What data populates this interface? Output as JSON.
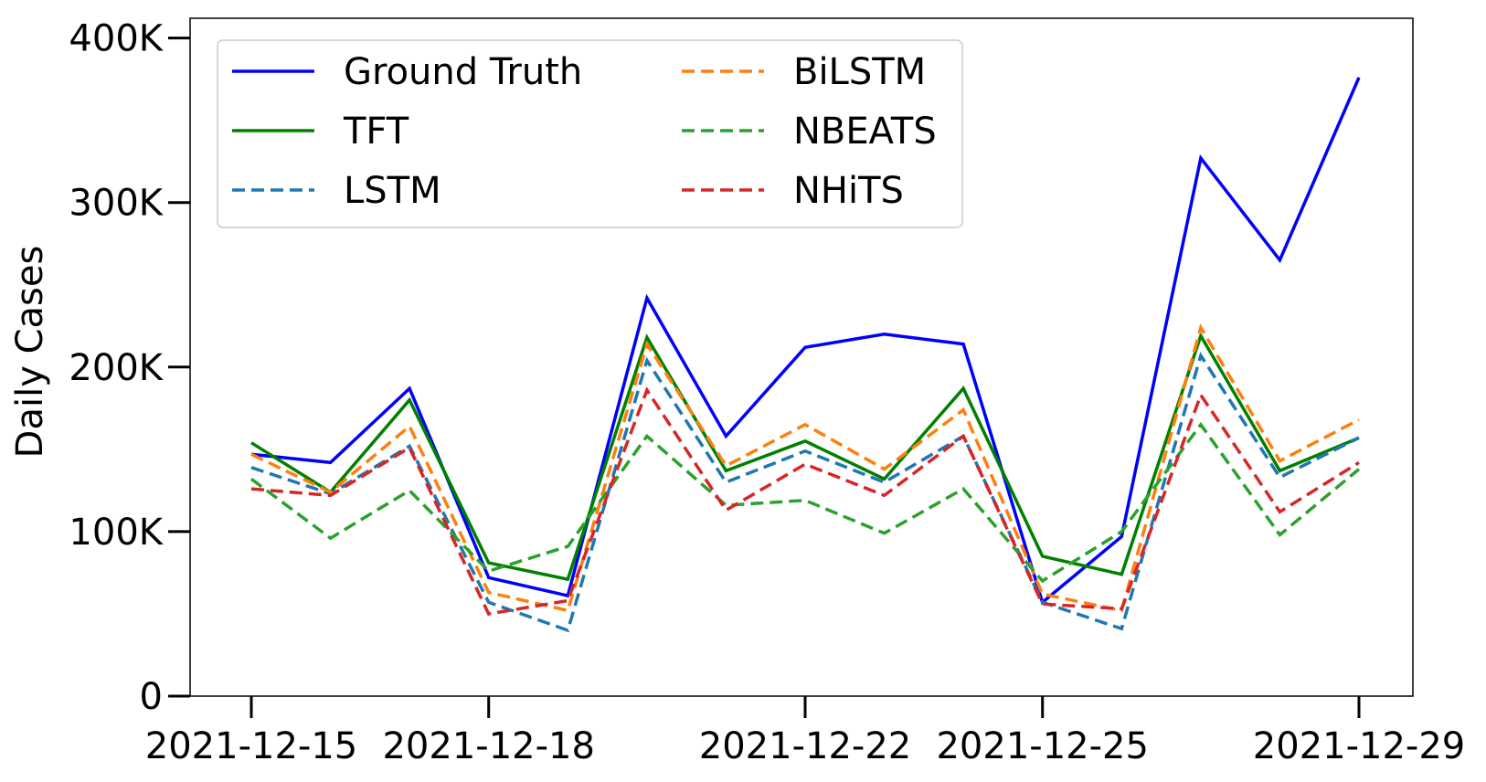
{
  "chart_data": {
    "type": "line",
    "title": "",
    "xlabel": "",
    "ylabel": "Daily Cases",
    "x": [
      "2021-12-15",
      "2021-12-16",
      "2021-12-17",
      "2021-12-18",
      "2021-12-19",
      "2021-12-20",
      "2021-12-21",
      "2021-12-22",
      "2021-12-23",
      "2021-12-24",
      "2021-12-25",
      "2021-12-26",
      "2021-12-27",
      "2021-12-28",
      "2021-12-29"
    ],
    "x_ticks": [
      "2021-12-15",
      "2021-12-18",
      "2021-12-22",
      "2021-12-25",
      "2021-12-29"
    ],
    "y_ticks": [
      0,
      100000,
      200000,
      300000,
      400000
    ],
    "y_tick_labels": [
      "0",
      "100K",
      "200K",
      "300K",
      "400K"
    ],
    "ylim": [
      0,
      412000
    ],
    "grid": false,
    "legend_position": "top-left",
    "legend_columns": 2,
    "series": [
      {
        "name": "Ground Truth",
        "color": "#0000ff",
        "style": "solid",
        "values": [
          147000,
          142000,
          187000,
          72000,
          61000,
          242000,
          158000,
          212000,
          220000,
          214000,
          57000,
          97000,
          327000,
          265000,
          376000
        ]
      },
      {
        "name": "TFT",
        "color": "#008000",
        "style": "solid",
        "values": [
          154000,
          124000,
          180000,
          81000,
          71000,
          218000,
          137000,
          155000,
          132000,
          187000,
          85000,
          74000,
          219000,
          137000,
          157000
        ]
      },
      {
        "name": "LSTM",
        "color": "#1f77b4",
        "style": "dashed",
        "values": [
          139000,
          123000,
          152000,
          57000,
          40000,
          204000,
          130000,
          149000,
          130000,
          158000,
          57000,
          41000,
          207000,
          133000,
          157000
        ]
      },
      {
        "name": "BiLSTM",
        "color": "#ff7f0e",
        "style": "dashed",
        "values": [
          147000,
          124000,
          164000,
          63000,
          52000,
          214000,
          140000,
          165000,
          138000,
          174000,
          62000,
          52000,
          224000,
          143000,
          168000
        ]
      },
      {
        "name": "NBEATS",
        "color": "#2ca02c",
        "style": "dashed",
        "values": [
          132000,
          96000,
          125000,
          76000,
          91000,
          158000,
          116000,
          119000,
          99000,
          126000,
          70000,
          100000,
          165000,
          98000,
          138000
        ]
      },
      {
        "name": "NHiTS",
        "color": "#d62728",
        "style": "dashed",
        "values": [
          126000,
          122000,
          151000,
          50000,
          58000,
          186000,
          113000,
          141000,
          122000,
          158000,
          56000,
          53000,
          183000,
          112000,
          142000
        ]
      }
    ]
  }
}
